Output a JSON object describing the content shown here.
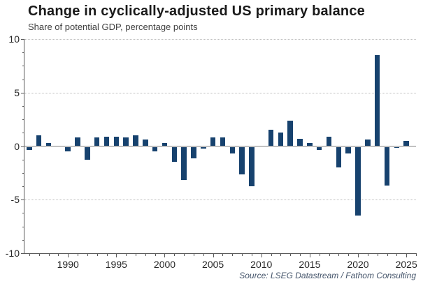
{
  "chart": {
    "title": "Change in cyclically-adjusted US primary balance",
    "subtitle": "Share of potential GDP, percentage points",
    "source": "Source: LSEG Datastream / Fathom Consulting"
  },
  "chart_data": {
    "type": "bar",
    "title": "Change in cyclically-adjusted US primary balance",
    "subtitle": "Share of potential GDP, percentage points",
    "source": "Source: LSEG Datastream / Fathom Consulting",
    "xlabel": "",
    "ylabel": "",
    "x": [
      1986,
      1987,
      1988,
      1989,
      1990,
      1991,
      1992,
      1993,
      1994,
      1995,
      1996,
      1997,
      1998,
      1999,
      2000,
      2001,
      2002,
      2003,
      2004,
      2005,
      2006,
      2007,
      2008,
      2009,
      2010,
      2011,
      2012,
      2013,
      2014,
      2015,
      2016,
      2017,
      2018,
      2019,
      2020,
      2021,
      2022,
      2023,
      2024,
      2025
    ],
    "values": [
      -0.3,
      1.0,
      0.3,
      0.0,
      -0.4,
      0.8,
      -1.2,
      0.8,
      0.9,
      0.9,
      0.8,
      1.0,
      0.6,
      -0.4,
      0.3,
      -1.4,
      -3.1,
      -1.1,
      -0.15,
      0.8,
      0.8,
      -0.65,
      -2.6,
      -3.7,
      0.0,
      1.5,
      1.3,
      2.4,
      0.7,
      0.3,
      -0.3,
      0.9,
      -1.9,
      -0.6,
      -6.4,
      0.6,
      8.5,
      -3.6,
      -0.1,
      0.5
    ],
    "ylim": [
      -10,
      10
    ],
    "y_major_ticks": [
      10,
      5,
      0,
      -5,
      -10
    ],
    "y_minor_step": 1.25,
    "x_label_ticks": [
      1990,
      1995,
      2000,
      2005,
      2010,
      2015,
      2020,
      2025
    ],
    "x_range": [
      1985.5,
      2026
    ],
    "bar_width": 7.5,
    "bar_color": "#17426e",
    "grid": "horizontal dotted at 10, 5, -5; solid zero line; legend off"
  }
}
